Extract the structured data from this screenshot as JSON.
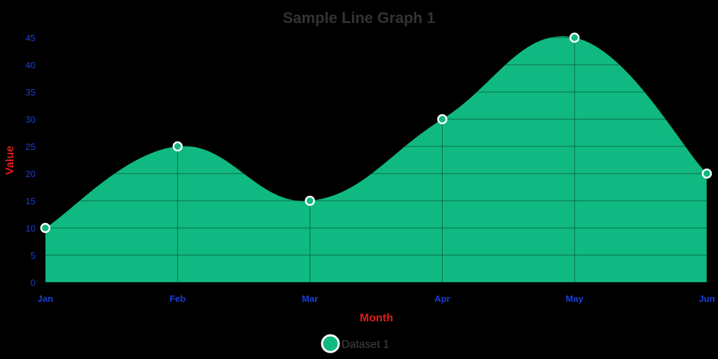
{
  "chart_data": {
    "type": "area",
    "title": "Sample Line Graph 1",
    "xlabel": "Month",
    "ylabel": "Value",
    "categories": [
      "Jan",
      "Feb",
      "Mar",
      "Apr",
      "May",
      "Jun"
    ],
    "series": [
      {
        "name": "Dataset 1",
        "values": [
          10,
          25,
          15,
          30,
          45,
          20
        ],
        "color": "#10b981"
      }
    ],
    "ylim": [
      0,
      45
    ],
    "yticks": [
      0,
      5,
      10,
      15,
      20,
      25,
      30,
      35,
      40,
      45
    ],
    "grid": true,
    "legend_position": "bottom",
    "curve": "smooth",
    "filled": true
  },
  "colors": {
    "background": "#000000",
    "fill": "#10b981",
    "grid": "#0b6b4a",
    "point_border": "#ffffff",
    "tick_text": "#1a3fd6",
    "axis_label": "#e01b1b",
    "title": "#333333",
    "legend_text": "#444444"
  }
}
